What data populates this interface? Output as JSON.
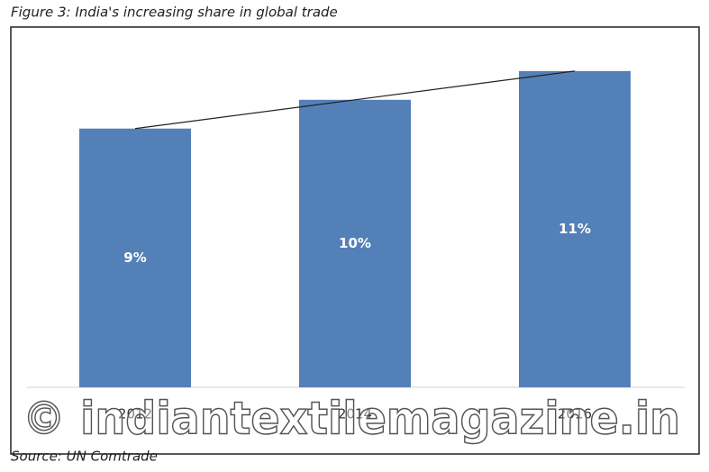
{
  "chart_data": {
    "type": "bar",
    "title": "Figure 3: India's increasing share in global trade",
    "categories": [
      "2012",
      "2014",
      "2016"
    ],
    "values": [
      9,
      10,
      11
    ],
    "value_labels": [
      "9%",
      "10%",
      "11%"
    ],
    "color": "#5480b8",
    "ylim": [
      0,
      12.5
    ],
    "trendline": true,
    "source": "Source: UN Comtrade",
    "watermark": "© indiantextilemagazine.in"
  }
}
